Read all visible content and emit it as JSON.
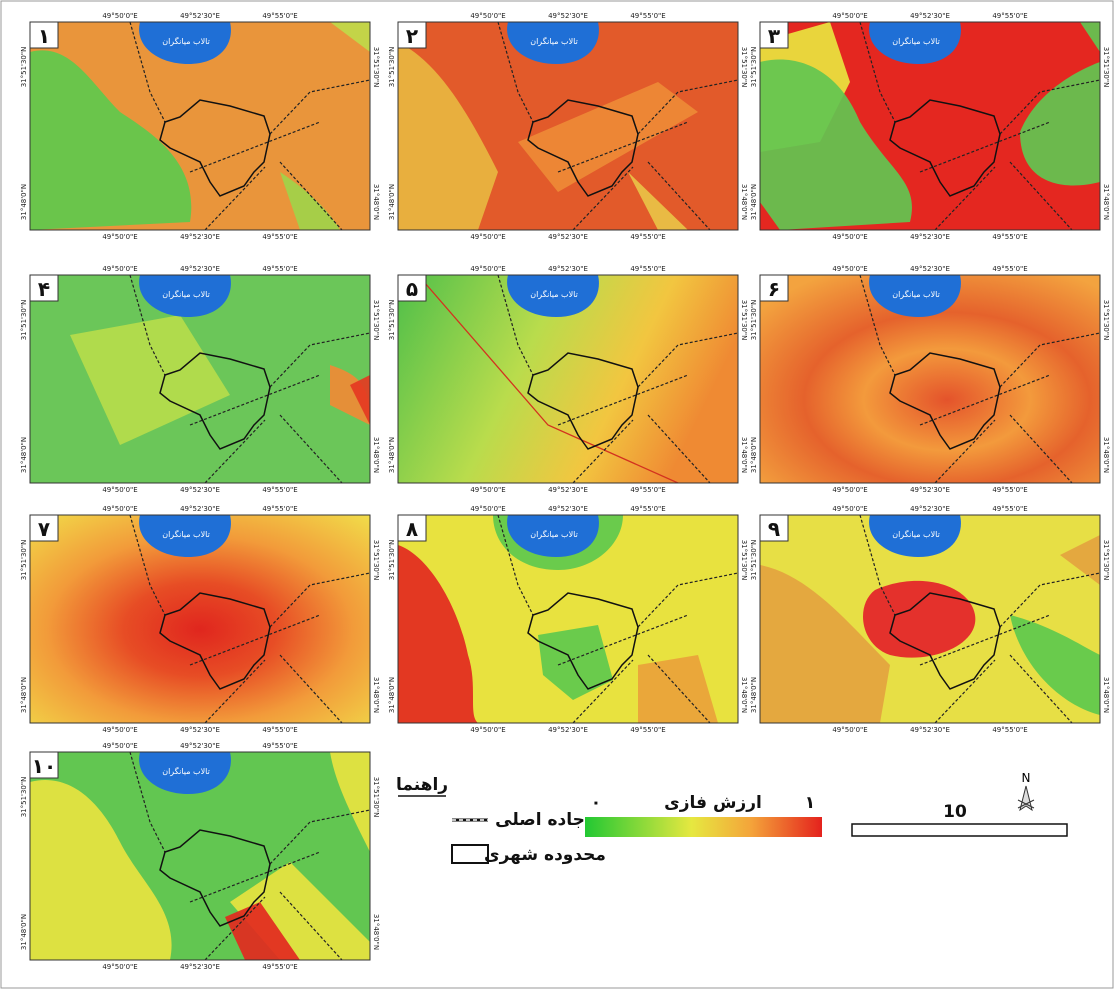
{
  "grid_labels": {
    "x": [
      "49°50'0\"E",
      "49°52'30\"E",
      "49°55'0\"E"
    ],
    "y": [
      "31°51'30\"N",
      "31°48'0\"N"
    ]
  },
  "panels": [
    {
      "number": "۱",
      "lake": "تالاب میانگران"
    },
    {
      "number": "۲",
      "lake": "تالاب میانگران"
    },
    {
      "number": "۳",
      "lake": "تالاب میانگران"
    },
    {
      "number": "۴",
      "lake": "تالاب میانگران"
    },
    {
      "number": "۵",
      "lake": "تالاب میانگران"
    },
    {
      "number": "۶",
      "lake": "تالاب میانگران"
    },
    {
      "number": "۷",
      "lake": "تالاب میانگران"
    },
    {
      "number": "۸",
      "lake": "تالاب میانگران"
    },
    {
      "number": "۹",
      "lake": "تالاب میانگران"
    },
    {
      "number": "۱۰",
      "lake": "تالاب میانگران"
    }
  ],
  "legend": {
    "title": "راهنما",
    "road": "جاده اصلی",
    "city": "محدوده شهری",
    "fuzzy": "ارزش فازی",
    "min": "۰",
    "max": "۱",
    "scale": "10",
    "north": "N"
  }
}
